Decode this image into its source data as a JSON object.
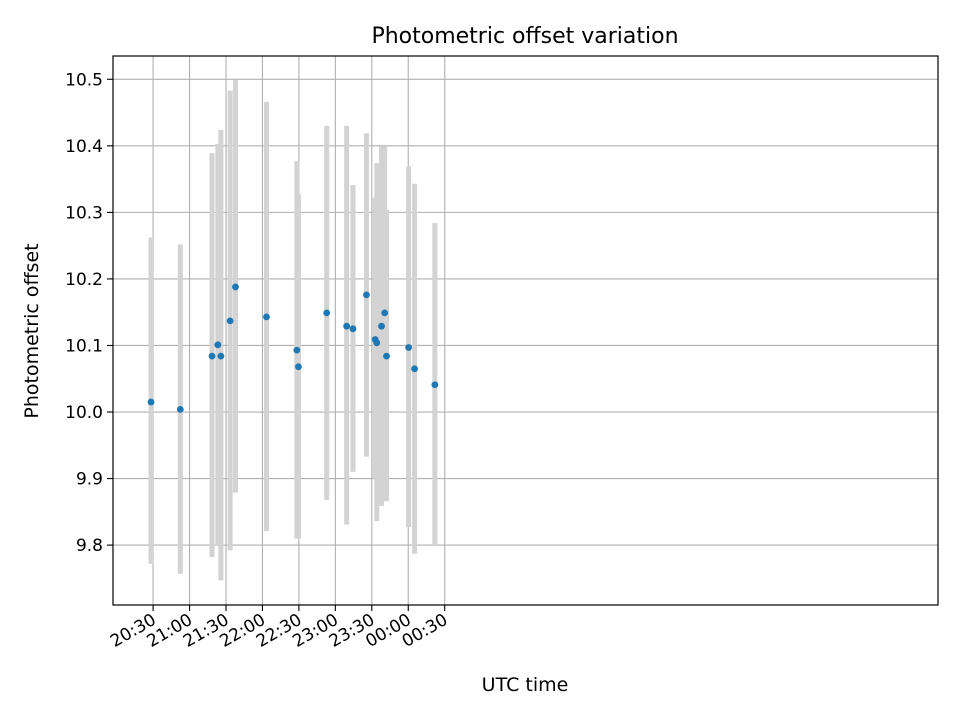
{
  "chart_data": {
    "type": "scatter",
    "title": "Photometric offset variation",
    "xlabel": "UTC time",
    "ylabel": "Photometric offset",
    "grid": true,
    "xlim_minutes": [
      1197,
      1876
    ],
    "ylim": [
      9.71,
      10.535
    ],
    "x_ticks": [
      {
        "label": "20:30",
        "minutes": 1230
      },
      {
        "label": "21:00",
        "minutes": 1260
      },
      {
        "label": "21:30",
        "minutes": 1290
      },
      {
        "label": "22:00",
        "minutes": 1320
      },
      {
        "label": "22:30",
        "minutes": 1350
      },
      {
        "label": "23:00",
        "minutes": 1380
      },
      {
        "label": "23:30",
        "minutes": 1410
      },
      {
        "label": "00:00",
        "minutes": 1440
      },
      {
        "label": "00:30",
        "minutes": 1470
      }
    ],
    "y_ticks": [
      {
        "label": "9.8",
        "value": 9.8
      },
      {
        "label": "9.9",
        "value": 9.9
      },
      {
        "label": "10.0",
        "value": 10.0
      },
      {
        "label": "10.1",
        "value": 10.1
      },
      {
        "label": "10.2",
        "value": 10.2
      },
      {
        "label": "10.3",
        "value": 10.3
      },
      {
        "label": "10.4",
        "value": 10.4
      },
      {
        "label": "10.5",
        "value": 10.5
      }
    ],
    "points": [
      {
        "time": "20:28",
        "minutes": 1228.3,
        "value": 10.015,
        "err_low": 9.772,
        "err_high": 10.262
      },
      {
        "time": "20:52",
        "minutes": 1252.4,
        "value": 10.004,
        "err_low": 9.757,
        "err_high": 10.252
      },
      {
        "time": "21:18",
        "minutes": 1278.5,
        "value": 10.084,
        "err_low": 9.782,
        "err_high": 10.389
      },
      {
        "time": "21:23",
        "minutes": 1283.3,
        "value": 10.101,
        "err_low": 9.8,
        "err_high": 10.403
      },
      {
        "time": "21:26",
        "minutes": 1285.8,
        "value": 10.084,
        "err_low": 9.747,
        "err_high": 10.424
      },
      {
        "time": "21:33",
        "minutes": 1293.4,
        "value": 10.137,
        "err_low": 9.792,
        "err_high": 10.483
      },
      {
        "time": "21:38",
        "minutes": 1297.8,
        "value": 10.188,
        "err_low": 9.879,
        "err_high": 10.499
      },
      {
        "time": "22:03",
        "minutes": 1323.3,
        "value": 10.143,
        "err_low": 9.821,
        "err_high": 10.466
      },
      {
        "time": "22:28",
        "minutes": 1348.3,
        "value": 10.093,
        "err_low": 9.81,
        "err_high": 10.377
      },
      {
        "time": "22:29",
        "minutes": 1349.6,
        "value": 10.068,
        "err_low": 9.81,
        "err_high": 10.327
      },
      {
        "time": "22:53",
        "minutes": 1372.9,
        "value": 10.149,
        "err_low": 9.868,
        "err_high": 10.43
      },
      {
        "time": "23:09",
        "minutes": 1389.3,
        "value": 10.129,
        "err_low": 9.831,
        "err_high": 10.43
      },
      {
        "time": "23:14",
        "minutes": 1394.5,
        "value": 10.125,
        "err_low": 9.91,
        "err_high": 10.341
      },
      {
        "time": "23:25",
        "minutes": 1405.6,
        "value": 10.176,
        "err_low": 9.933,
        "err_high": 10.419
      },
      {
        "time": "23:33",
        "minutes": 1412.8,
        "value": 10.109,
        "err_low": 9.9,
        "err_high": 10.322
      },
      {
        "time": "23:34",
        "minutes": 1414.1,
        "value": 10.104,
        "err_low": 9.836,
        "err_high": 10.374
      },
      {
        "time": "23:38",
        "minutes": 1418.0,
        "value": 10.129,
        "err_low": 9.859,
        "err_high": 10.399
      },
      {
        "time": "23:40",
        "minutes": 1420.6,
        "value": 10.149,
        "err_low": 9.9,
        "err_high": 10.399
      },
      {
        "time": "23:42",
        "minutes": 1422.1,
        "value": 10.084,
        "err_low": 9.866,
        "err_high": 10.304
      },
      {
        "time": "00:00",
        "minutes": 1440.3,
        "value": 10.097,
        "err_low": 9.827,
        "err_high": 10.369
      },
      {
        "time": "00:05",
        "minutes": 1445.2,
        "value": 10.065,
        "err_low": 9.787,
        "err_high": 10.343
      },
      {
        "time": "00:22",
        "minutes": 1461.9,
        "value": 10.041,
        "err_low": 9.8,
        "err_high": 10.284
      }
    ],
    "point_color": "#1f77b4",
    "errorbar_color": "#d3d3d3",
    "grid_color": "#b0b0b0"
  }
}
